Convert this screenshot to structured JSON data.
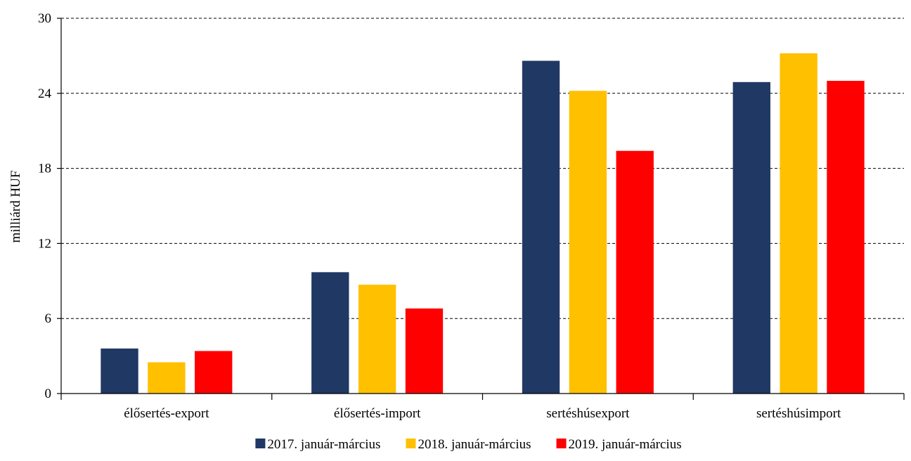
{
  "chart_data": {
    "type": "bar",
    "title": "",
    "xlabel": "",
    "ylabel": "milliárd HUF",
    "ylim": [
      0,
      30
    ],
    "yticks": [
      "0",
      "6",
      "12",
      "18",
      "24",
      "30"
    ],
    "grid": "horizontal dashed",
    "legend_position": "bottom",
    "categories": [
      "élősertés-export",
      "élősertés-import",
      "sertéshúsexport",
      "sertéshúsimport"
    ],
    "series": [
      {
        "name": "2017. január-március",
        "color": "#203864",
        "values": [
          3.6,
          9.7,
          26.6,
          24.9
        ]
      },
      {
        "name": "2018. január-március",
        "color": "#FFC000",
        "values": [
          2.5,
          8.7,
          24.2,
          27.2
        ]
      },
      {
        "name": "2019. január-március",
        "color": "#FF0000",
        "values": [
          3.4,
          6.8,
          19.4,
          25.0
        ]
      }
    ]
  }
}
